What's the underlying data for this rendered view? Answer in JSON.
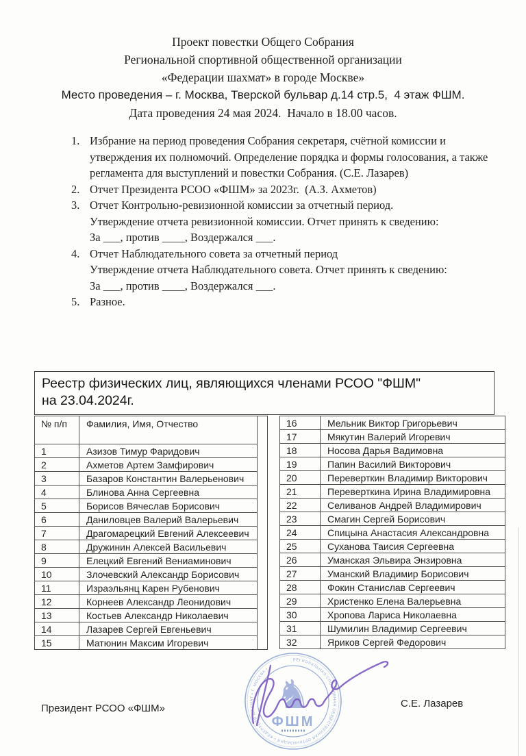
{
  "document": {
    "header_lines": [
      "Проект повестки Общего Собрания",
      "Региональной спортивной общественной организации",
      "«Федерации шахмат» в городе Москве»",
      "Место проведения – г. Москва, Тверской бульвар д.14 стр.5,  4 этаж ФШМ.",
      "Дата проведения 24 мая 2024.  Начало в 18.00 часов."
    ],
    "agenda": {
      "items": [
        {
          "num": "1.",
          "paras": [
            "Избрание на период проведения Собрания секретаря, счётной комиссии и утверждения их полномочий. Определение порядка и формы голосования, а также регламента для выступлений и повестки Собрания. (С.Е. Лазарев)"
          ]
        },
        {
          "num": "2.",
          "paras": [
            "Отчет Президента РСОО «ФШМ» за 2023г.  (А.З. Ахметов)"
          ]
        },
        {
          "num": "3.",
          "paras": [
            "Отчет Контрольно-ревизионной комиссии за отчетный период.",
            "Утверждение отчета ревизионной комиссии. Отчет принять к сведению:",
            "За ___, против ____, Воздержался ___."
          ]
        },
        {
          "num": "4.",
          "paras": [
            "Отчет Наблюдательного совета за отчетный период",
            "Утверждение отчета Наблюдательного совета. Отчет принять к сведению:",
            "За ___, против ____, Воздержался ___."
          ]
        },
        {
          "num": "5.",
          "paras": [
            "Разное."
          ]
        }
      ]
    },
    "registry": {
      "title_line1": "Реестр физических лиц, являющихся членами РСОО \"ФШМ\"",
      "title_line2": "на 23.04.2024г.",
      "columns": {
        "num": "№ п/п",
        "name": "Фамилия, Имя, Отчество"
      },
      "members": [
        {
          "num": "1",
          "name": "Азизов Тимур Фаридович"
        },
        {
          "num": "2",
          "name": "Ахметов Артем Замфирович"
        },
        {
          "num": "3",
          "name": "Базаров Константин Валерьенович"
        },
        {
          "num": "4",
          "name": "Блинова Анна Сергеевна"
        },
        {
          "num": "5",
          "name": "Борисов Вячеслав Борисович"
        },
        {
          "num": "6",
          "name": "Даниловцев Валерий Валерьевич"
        },
        {
          "num": "7",
          "name": "Драгомарецкий Евгений Алексеевич"
        },
        {
          "num": "8",
          "name": "Дружинин Алексей Васильевич"
        },
        {
          "num": "9",
          "name": "Елецкий Евгений Вениаминович"
        },
        {
          "num": "10",
          "name": "Злочевский Александр Борисович"
        },
        {
          "num": "11",
          "name": "Израэльянц Карен Рубенович"
        },
        {
          "num": "12",
          "name": "Корнеев Александр Леонидович"
        },
        {
          "num": "13",
          "name": "Костьев Александр Николаевич"
        },
        {
          "num": "14",
          "name": "Лазарев Сергей Евгеньевич"
        },
        {
          "num": "15",
          "name": "Матюнин Максим Игоревич"
        },
        {
          "num": "16",
          "name": "Мельник Виктор Григорьевич"
        },
        {
          "num": "17",
          "name": "Мякутин Валерий Игоревич"
        },
        {
          "num": "18",
          "name": "Носова Дарья Вадимовна"
        },
        {
          "num": "19",
          "name": "Папин Василий Викторович"
        },
        {
          "num": "20",
          "name": "Переверткин Владимир Викторович"
        },
        {
          "num": "21",
          "name": "Переверткина Ирина Владимировна"
        },
        {
          "num": "22",
          "name": "Селиванов Андрей Владимирович"
        },
        {
          "num": "23",
          "name": "Смагин Сергей Борисович"
        },
        {
          "num": "24",
          "name": "Спицына Анастасия Александровна"
        },
        {
          "num": "25",
          "name": "Суханова Таисия Сергеевна"
        },
        {
          "num": "26",
          "name": "Уманская Эльвира Энзировна"
        },
        {
          "num": "27",
          "name": "Уманский Владимир Борисович"
        },
        {
          "num": "28",
          "name": "Фокин Станислав Сергеевич"
        },
        {
          "num": "29",
          "name": "Христенко Елена Валерьевна"
        },
        {
          "num": "30",
          "name": "Хропова Лариса Николаевна"
        },
        {
          "num": "31",
          "name": "Шумилин Владимир Сергеевич"
        },
        {
          "num": "32",
          "name": "Яриков Сергей Федорович"
        }
      ]
    },
    "signature_block": {
      "role": "Президент РСОО «ФШМ»",
      "name": "С.Е. Лазарев"
    },
    "stamp": {
      "ring_text": "РЕГИОНАЛЬНАЯ СПОРТИВНАЯ ОБЩЕСТВЕННАЯ ОРГАНИЗАЦИЯ • ФЕДЕРАЦИЯ ШАХМАТ • Г. МОСКВА •",
      "abbr": "ФШМ",
      "knight_glyph": "♞",
      "stamp_color": "#8ea6d6",
      "signature_color": "#7e5ec4"
    }
  },
  "colors": {
    "text": "#1f1f1f",
    "table_border": "#4a4a4a",
    "paper": "#fdfdfb"
  }
}
